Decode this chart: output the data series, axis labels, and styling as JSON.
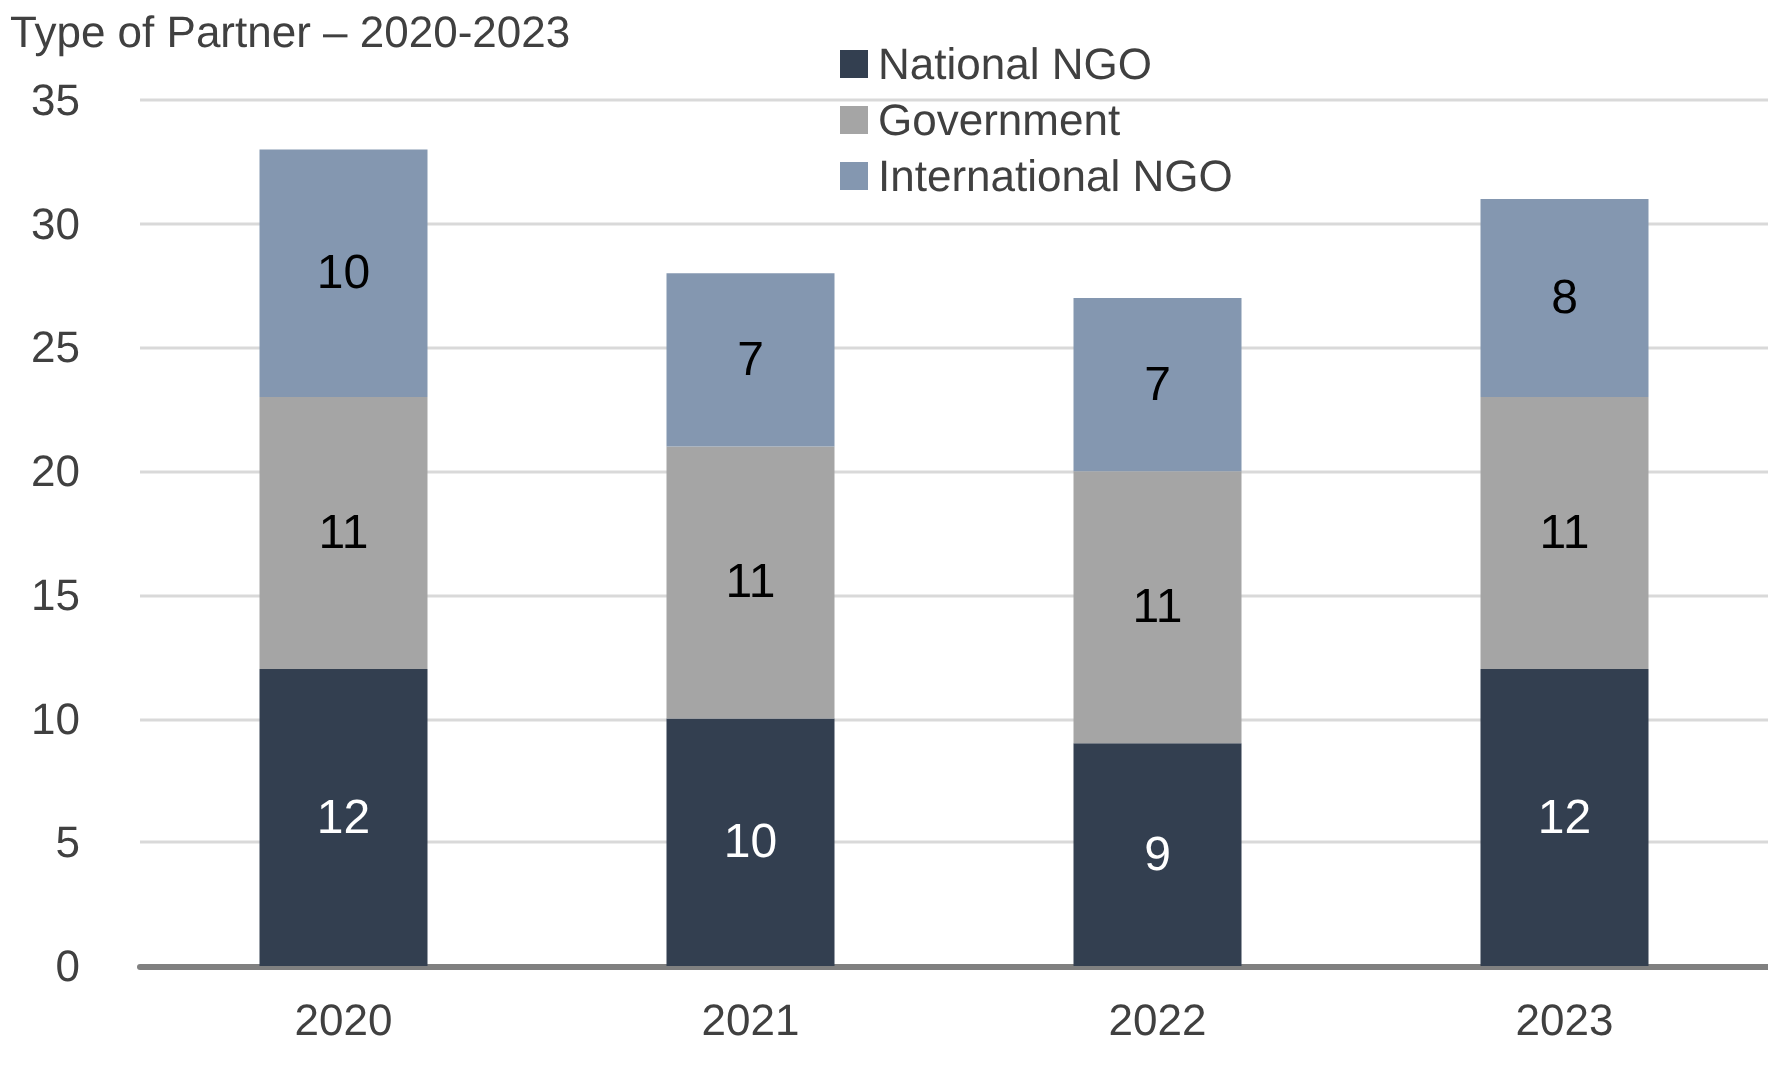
{
  "chart_data": {
    "type": "bar",
    "title": "Type of Partner – 2020-2023",
    "categories": [
      "2020",
      "2021",
      "2022",
      "2023"
    ],
    "stacked": true,
    "series": [
      {
        "name": "National NGO",
        "color": "#333f50",
        "values": [
          12,
          10,
          9,
          12
        ]
      },
      {
        "name": "Government",
        "color": "#a5a5a5",
        "values": [
          11,
          11,
          11,
          11
        ]
      },
      {
        "name": "International NGO",
        "color": "#8497b0",
        "values": [
          10,
          7,
          7,
          8
        ]
      }
    ],
    "ylim": [
      0,
      35
    ],
    "yticks": [
      0,
      5,
      10,
      15,
      20,
      25,
      30,
      35
    ],
    "grid": "y",
    "legend": "top",
    "data_labels": true
  }
}
